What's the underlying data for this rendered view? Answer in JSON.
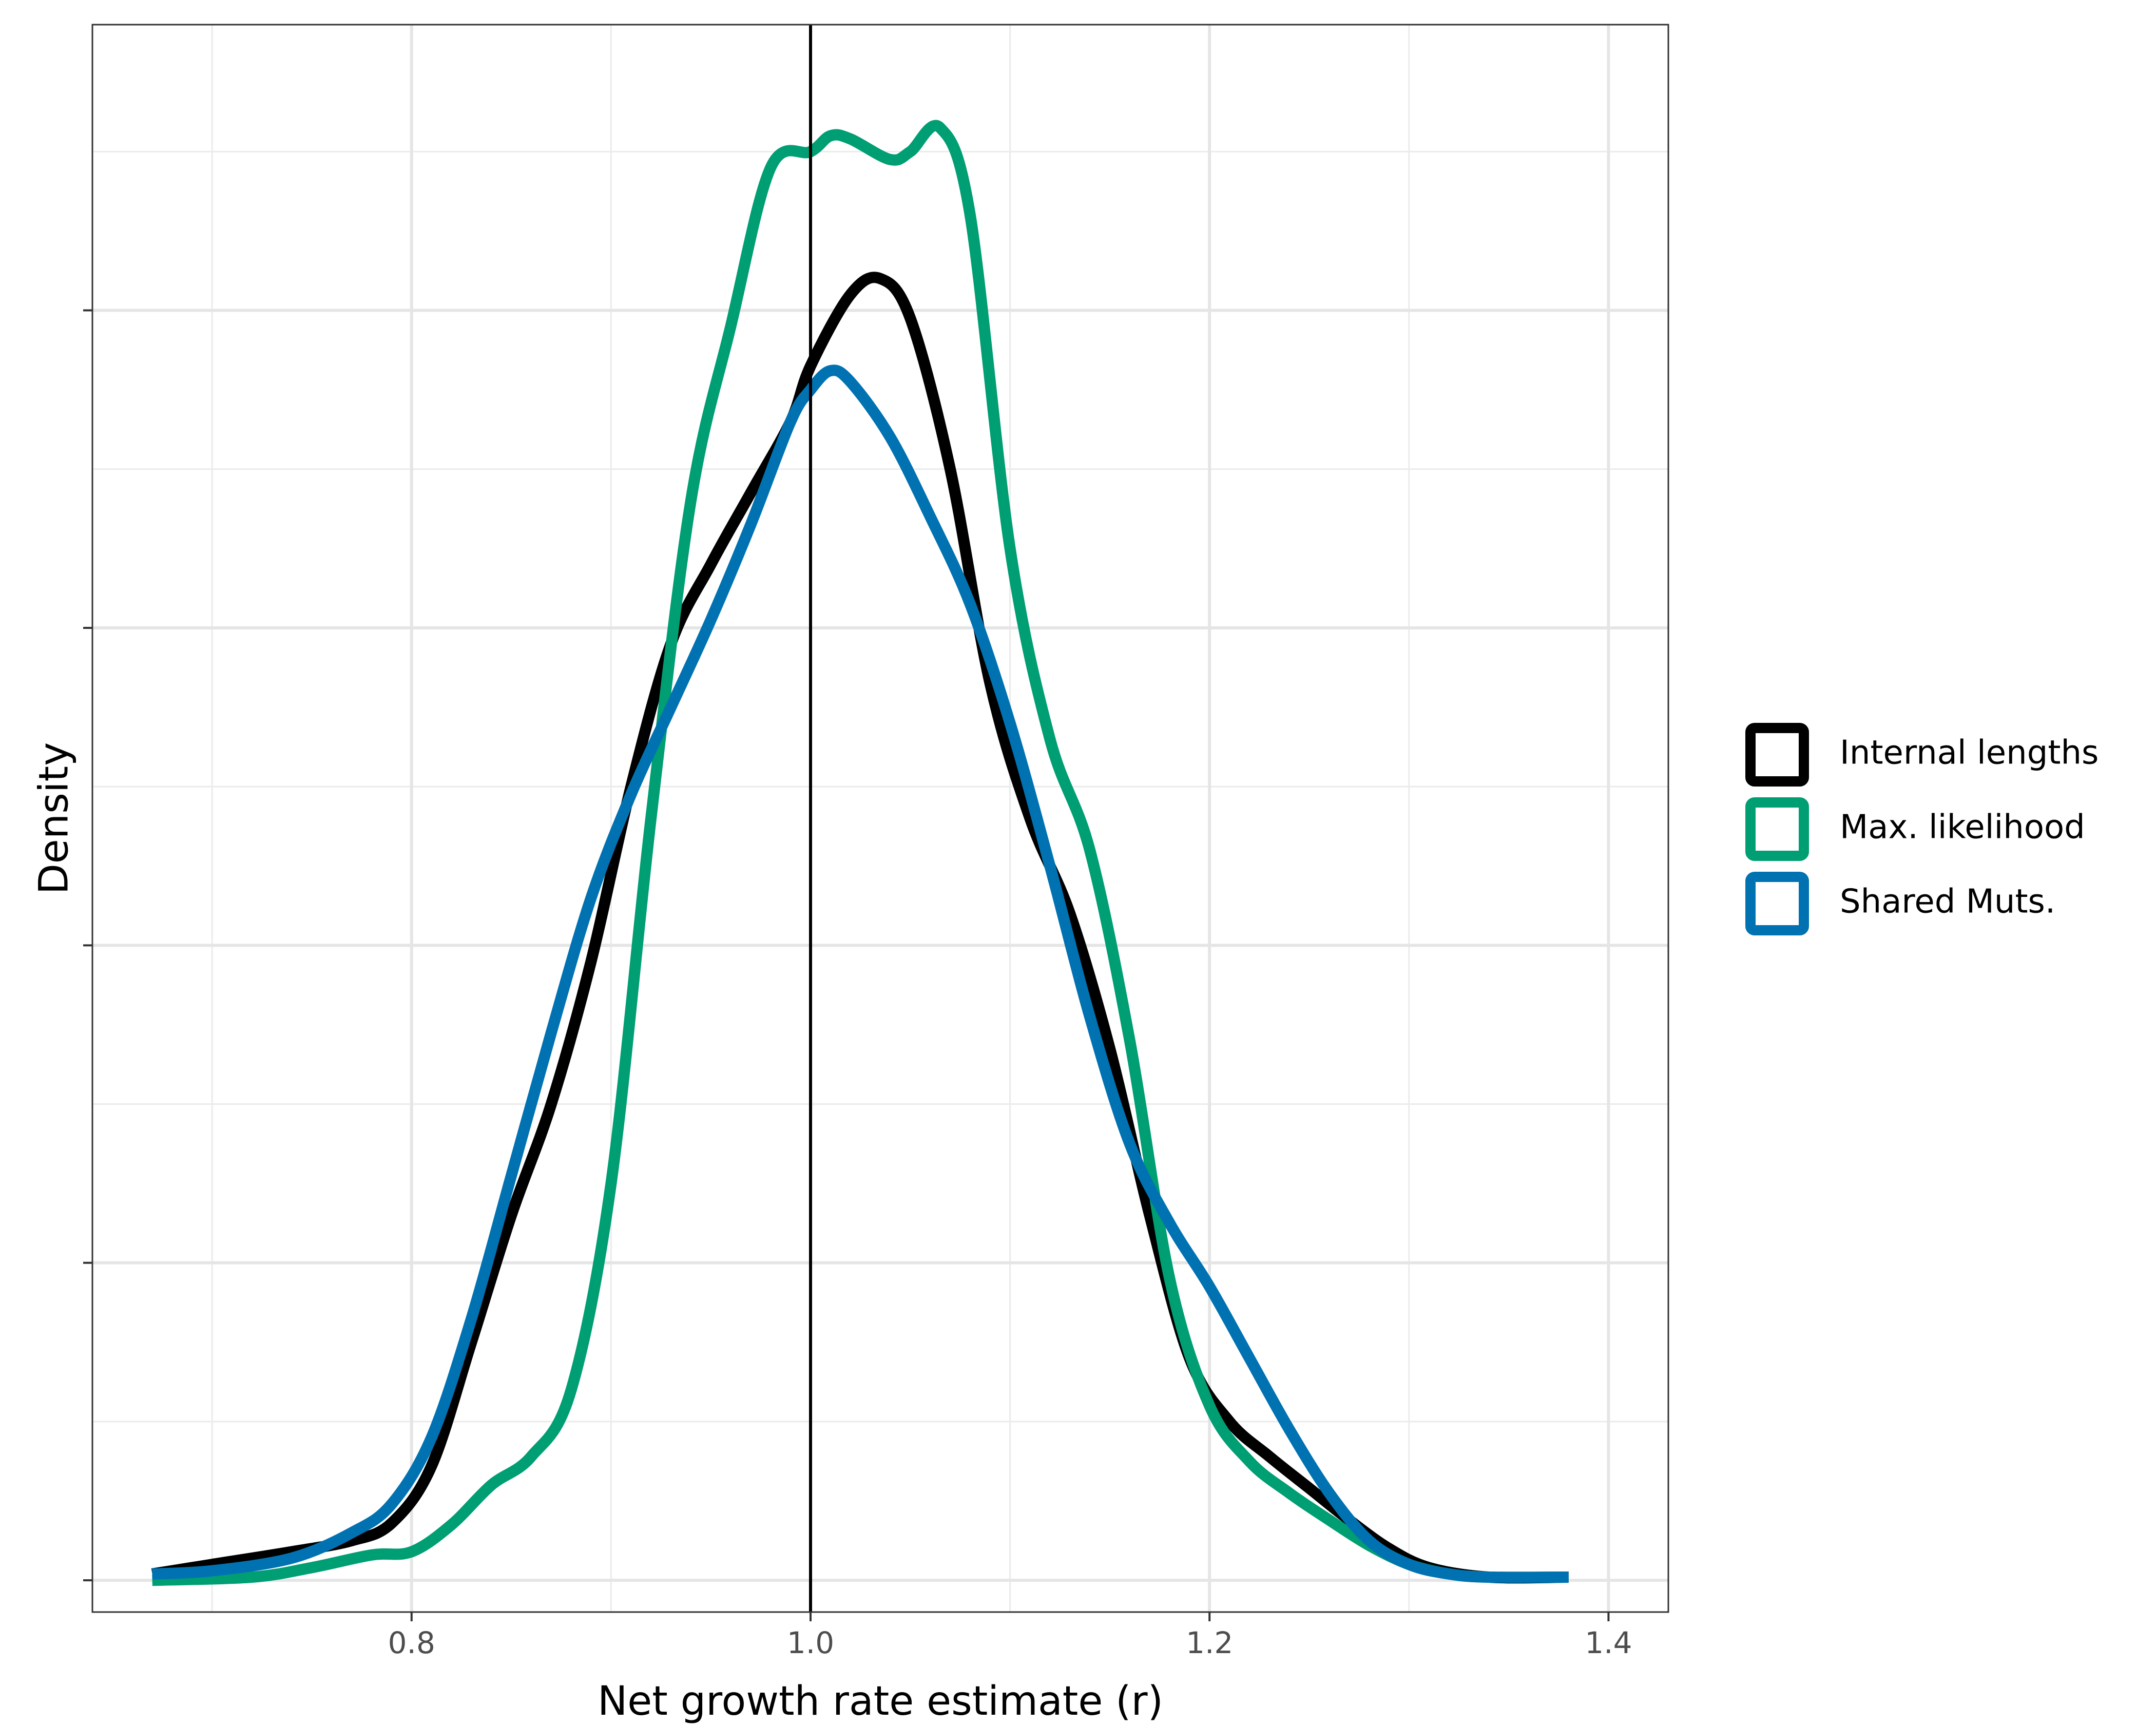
{
  "chart_data": {
    "type": "line",
    "title": "",
    "xlabel": "Net growth rate estimate (r)",
    "ylabel": "Density",
    "xlim": [
      0.64,
      1.43
    ],
    "ylim": [
      -0.2,
      9.8
    ],
    "x_ticks": [
      0.8,
      1.0,
      1.2,
      1.4
    ],
    "x_tick_labels": [
      "0.8",
      "1.0",
      "1.2",
      "1.4"
    ],
    "y_ticks_major": [
      0,
      2,
      4,
      6,
      8
    ],
    "y_ticks_minor": [
      1,
      3,
      5,
      7,
      9
    ],
    "y_tick_labels_shown": false,
    "grid": true,
    "vline": 1.0,
    "legend_position": "right",
    "series": [
      {
        "name": "Internal lengths",
        "color": "#000000",
        "x": [
          0.67,
          0.7,
          0.74,
          0.77,
          0.79,
          0.81,
          0.83,
          0.85,
          0.87,
          0.89,
          0.91,
          0.93,
          0.95,
          0.97,
          0.99,
          1.0,
          1.02,
          1.035,
          1.05,
          1.07,
          1.09,
          1.11,
          1.13,
          1.15,
          1.17,
          1.19,
          1.21,
          1.23,
          1.25,
          1.27,
          1.29,
          1.31,
          1.34,
          1.38
        ],
        "y": [
          0.04,
          0.1,
          0.18,
          0.25,
          0.36,
          0.72,
          1.5,
          2.3,
          3.0,
          3.9,
          5.0,
          5.9,
          6.4,
          6.85,
          7.3,
          7.65,
          8.1,
          8.2,
          7.95,
          7.0,
          5.65,
          4.8,
          4.2,
          3.35,
          2.3,
          1.4,
          1.0,
          0.78,
          0.58,
          0.38,
          0.2,
          0.08,
          0.02,
          0.02
        ]
      },
      {
        "name": "Max. likelihood",
        "color": "#009E73",
        "x": [
          0.67,
          0.72,
          0.75,
          0.78,
          0.8,
          0.82,
          0.84,
          0.86,
          0.88,
          0.9,
          0.92,
          0.94,
          0.96,
          0.98,
          1.0,
          1.01,
          1.02,
          1.04,
          1.05,
          1.065,
          1.08,
          1.1,
          1.12,
          1.14,
          1.16,
          1.18,
          1.2,
          1.22,
          1.24,
          1.26,
          1.28,
          1.3,
          1.32,
          1.34,
          1.38
        ],
        "y": [
          0.0,
          0.02,
          0.08,
          0.16,
          0.18,
          0.35,
          0.6,
          0.78,
          1.2,
          2.5,
          4.8,
          6.8,
          7.9,
          8.9,
          9.0,
          9.1,
          9.08,
          8.95,
          9.0,
          9.15,
          8.6,
          6.5,
          5.3,
          4.6,
          3.4,
          1.9,
          1.1,
          0.75,
          0.55,
          0.38,
          0.22,
          0.1,
          0.04,
          0.02,
          0.02
        ]
      },
      {
        "name": "Shared Muts.",
        "color": "#0072B2",
        "x": [
          0.67,
          0.7,
          0.74,
          0.77,
          0.79,
          0.81,
          0.83,
          0.85,
          0.87,
          0.89,
          0.91,
          0.93,
          0.95,
          0.97,
          0.99,
          1.0,
          1.01,
          1.02,
          1.04,
          1.06,
          1.08,
          1.1,
          1.12,
          1.14,
          1.16,
          1.18,
          1.2,
          1.22,
          1.24,
          1.26,
          1.28,
          1.3,
          1.32,
          1.34,
          1.38
        ],
        "y": [
          0.04,
          0.06,
          0.14,
          0.3,
          0.48,
          0.9,
          1.65,
          2.55,
          3.45,
          4.3,
          4.95,
          5.5,
          6.05,
          6.65,
          7.3,
          7.5,
          7.62,
          7.55,
          7.2,
          6.7,
          6.15,
          5.4,
          4.5,
          3.55,
          2.75,
          2.25,
          1.85,
          1.4,
          0.95,
          0.55,
          0.25,
          0.1,
          0.04,
          0.02,
          0.02
        ]
      }
    ]
  }
}
